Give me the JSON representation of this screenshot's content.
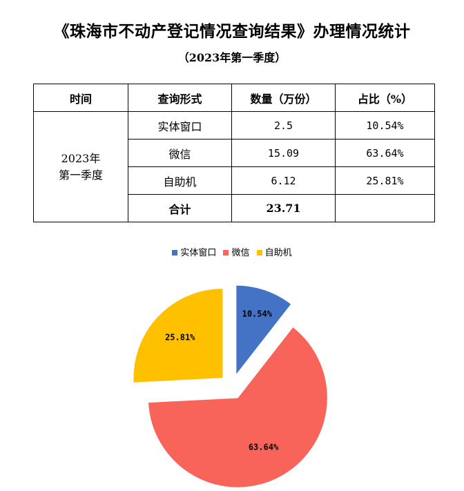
{
  "title": "《珠海市不动产登记情况查询结果》办理情况统计",
  "subtitle": "（2023年第一季度）",
  "table": {
    "headers": [
      "时间",
      "查询形式",
      "数量（万份）",
      "占比（%）"
    ],
    "period_line1": "2023年",
    "period_line2": "第一季度",
    "rows": [
      {
        "form": "实体窗口",
        "count": "2.5",
        "share": "10.54%"
      },
      {
        "form": "微信",
        "count": "15.09",
        "share": "63.64%"
      },
      {
        "form": "自助机",
        "count": "6.12",
        "share": "25.81%"
      }
    ],
    "total_label": "合计",
    "total_count": "23.71",
    "total_share": ""
  },
  "chart_data": {
    "type": "pie",
    "categories": [
      "实体窗口",
      "微信",
      "自助机"
    ],
    "values": [
      10.54,
      63.64,
      25.81
    ],
    "data_labels": [
      "10.54%",
      "63.64%",
      "25.81%"
    ],
    "colors": [
      "#4472C4",
      "#F8635A",
      "#FFC000"
    ],
    "legend_placement": "top",
    "exploded": true
  }
}
